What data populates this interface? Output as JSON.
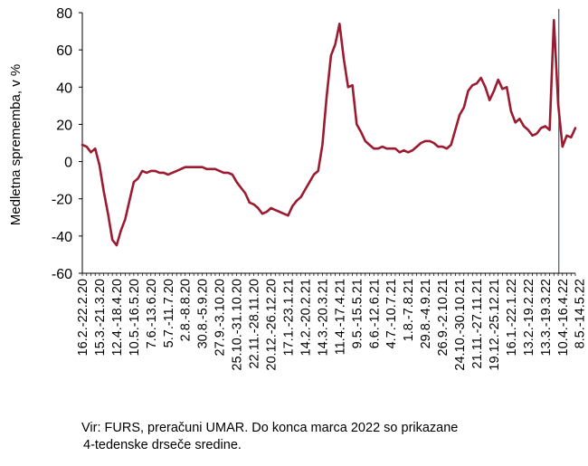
{
  "chart_data": {
    "type": "line",
    "ylabel": "Medletna sprememba, v %",
    "xlabel": "",
    "title": "",
    "ylim": [
      -60,
      80
    ],
    "yticks": [
      -60,
      -40,
      -20,
      0,
      20,
      40,
      60,
      80
    ],
    "grid": false,
    "legend": "none",
    "line_color": "#9B1B30",
    "marker_line_color": "#1F3B5A",
    "marker_line_label": "Do konca marca 2022 so prikazane 4-tedenske drseče sredine.",
    "x_tick_labels": [
      "16.2.-22.2.20",
      "15.3.-21.3.20",
      "12.4.-18.4.20",
      "10.5.-16.5.20",
      "7.6.-13.6.20",
      "5.7.-11.7.20",
      "2.8.-8.8.20",
      "30.8.-5.9.20",
      "27.9.-3.10.20",
      "25.10.-31.10.20",
      "22.11.-28.11.20",
      "20.12.-26.12.20",
      "17.1.-23.1.21",
      "14.2.-20.2.21",
      "14.3.-20.3.21",
      "11.4.-17.4.21",
      "9.5.-15.5.21",
      "6.6.-12.6.21",
      "4.7.-10.7.21",
      "1.8.-7.8.21",
      "29.8.-4.9.21",
      "26.9.-2.10.21",
      "24.10.-30.10.21",
      "21.11.-27.11.21",
      "19.12.-25.12.21",
      "16.1.-22.1.22",
      "13.2.-19.2.22",
      "13.3.-19.3.22",
      "10.4.-16.4.22",
      "8.5.-14.5.22"
    ],
    "tick_every_weeks": 4,
    "marker_week_index": 112,
    "series": [
      {
        "values": [
          9,
          8,
          5,
          7,
          -2,
          -16,
          -28,
          -42,
          -45,
          -37,
          -31,
          -21,
          -11,
          -9,
          -5,
          -6,
          -5,
          -5,
          -6,
          -6,
          -7,
          -6,
          -5,
          -4,
          -3,
          -3,
          -3,
          -3,
          -3,
          -4,
          -4,
          -4,
          -5,
          -6,
          -6,
          -7,
          -11,
          -14,
          -17,
          -22,
          -23,
          -25,
          -28,
          -27,
          -25,
          -26,
          -27,
          -28,
          -29,
          -24,
          -21,
          -19,
          -15,
          -11,
          -7,
          -5,
          9,
          35,
          57,
          63,
          74,
          55,
          40,
          41,
          20,
          16,
          11,
          9,
          7,
          7,
          8,
          7,
          7,
          7,
          5,
          6,
          5,
          6,
          8,
          10,
          11,
          11,
          10,
          8,
          8,
          7,
          9,
          17,
          25,
          29,
          38,
          41,
          42,
          45,
          40,
          33,
          38,
          44,
          39,
          40,
          27,
          21,
          23,
          19,
          17,
          14,
          15,
          18,
          19,
          17,
          76,
          31,
          8,
          14,
          13,
          18
        ]
      }
    ]
  },
  "source_note": {
    "line1": "Vir: FURS, preračuni UMAR. Do konca marca 2022 so prikazane",
    "line2": "4-tedenske drseče sredine."
  }
}
